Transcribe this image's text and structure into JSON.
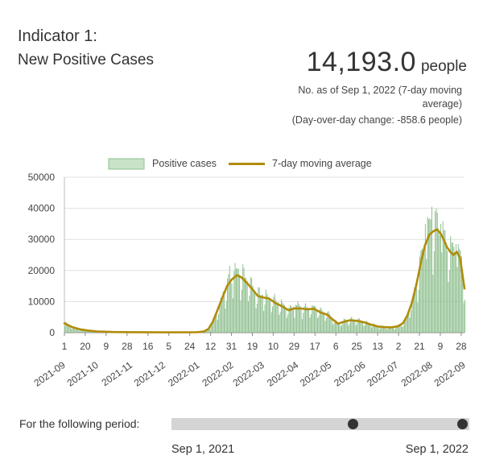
{
  "header": {
    "indicator": "Indicator 1:",
    "title": "New Positive Cases",
    "value": "14,193.0",
    "unit": "people",
    "note": "No. as of Sep 1, 2022  (7-day moving average)",
    "change": "(Day-over-day change: -858.6 people)"
  },
  "period": {
    "label": "For the following period:",
    "start": "Sep 1, 2021",
    "end": "Sep 1, 2022"
  },
  "colors": {
    "bar": "#8fbf8f",
    "bar_fill": "#c7e3c7",
    "line": "#b08c0a",
    "grid": "#e0e0e0"
  },
  "chart_data": {
    "type": "bar",
    "legend": {
      "placement": "top-center",
      "bar_label": "Positive cases",
      "line_label": "7-day moving average"
    },
    "ylim": [
      0,
      50000
    ],
    "yticks": [
      "0",
      "10000",
      "20000",
      "30000",
      "40000",
      "50000"
    ],
    "x_start": "2021-09-01",
    "x_end": "2022-08-31",
    "grid": "horizontal",
    "day_ticks": [
      {
        "label": "1",
        "date": "2021-09-01"
      },
      {
        "label": "20",
        "date": "2021-09-20"
      },
      {
        "label": "9",
        "date": "2021-10-09"
      },
      {
        "label": "28",
        "date": "2021-10-28"
      },
      {
        "label": "16",
        "date": "2021-11-16"
      },
      {
        "label": "5",
        "date": "2021-12-05"
      },
      {
        "label": "24",
        "date": "2021-12-24"
      },
      {
        "label": "12",
        "date": "2022-01-12"
      },
      {
        "label": "31",
        "date": "2022-01-31"
      },
      {
        "label": "19",
        "date": "2022-02-19"
      },
      {
        "label": "10",
        "date": "2022-03-10"
      },
      {
        "label": "29",
        "date": "2022-03-29"
      },
      {
        "label": "17",
        "date": "2022-04-17"
      },
      {
        "label": "6",
        "date": "2022-05-06"
      },
      {
        "label": "25",
        "date": "2022-05-25"
      },
      {
        "label": "13",
        "date": "2022-06-13"
      },
      {
        "label": "2",
        "date": "2022-07-02"
      },
      {
        "label": "21",
        "date": "2022-07-21"
      },
      {
        "label": "9",
        "date": "2022-08-09"
      },
      {
        "label": "28",
        "date": "2022-08-28"
      }
    ],
    "month_ticks": [
      {
        "label": "2021-09",
        "date": "2021-09-01"
      },
      {
        "label": "2021-10",
        "date": "2021-10-01"
      },
      {
        "label": "2021-11",
        "date": "2021-11-01"
      },
      {
        "label": "2021-12",
        "date": "2021-12-01"
      },
      {
        "label": "2022-01",
        "date": "2022-01-01"
      },
      {
        "label": "2022-02",
        "date": "2022-02-01"
      },
      {
        "label": "2022-03",
        "date": "2022-03-01"
      },
      {
        "label": "2022-04",
        "date": "2022-04-01"
      },
      {
        "label": "2022-05",
        "date": "2022-05-01"
      },
      {
        "label": "2022-06",
        "date": "2022-06-01"
      },
      {
        "label": "2022-07",
        "date": "2022-07-01"
      },
      {
        "label": "2022-08",
        "date": "2022-08-01"
      },
      {
        "label": "2022-09",
        "date": "2022-09-01"
      }
    ],
    "moving_average": [
      [
        "2021-09-01",
        3000
      ],
      [
        "2021-09-08",
        1800
      ],
      [
        "2021-09-15",
        1100
      ],
      [
        "2021-09-22",
        700
      ],
      [
        "2021-10-01",
        400
      ],
      [
        "2021-10-15",
        200
      ],
      [
        "2021-11-01",
        150
      ],
      [
        "2021-12-01",
        100
      ],
      [
        "2021-12-31",
        150
      ],
      [
        "2022-01-06",
        400
      ],
      [
        "2022-01-10",
        1200
      ],
      [
        "2022-01-14",
        3500
      ],
      [
        "2022-01-18",
        7000
      ],
      [
        "2022-01-23",
        11500
      ],
      [
        "2022-01-27",
        15000
      ],
      [
        "2022-01-31",
        17000
      ],
      [
        "2022-02-05",
        18500
      ],
      [
        "2022-02-09",
        17800
      ],
      [
        "2022-02-14",
        16000
      ],
      [
        "2022-02-19",
        14000
      ],
      [
        "2022-02-24",
        11800
      ],
      [
        "2022-03-01",
        11300
      ],
      [
        "2022-03-06",
        11000
      ],
      [
        "2022-03-12",
        9500
      ],
      [
        "2022-03-18",
        8500
      ],
      [
        "2022-03-24",
        7200
      ],
      [
        "2022-03-29",
        7800
      ],
      [
        "2022-04-04",
        7800
      ],
      [
        "2022-04-10",
        7500
      ],
      [
        "2022-04-16",
        7700
      ],
      [
        "2022-04-22",
        6500
      ],
      [
        "2022-04-28",
        5800
      ],
      [
        "2022-05-04",
        4000
      ],
      [
        "2022-05-08",
        2900
      ],
      [
        "2022-05-14",
        3600
      ],
      [
        "2022-05-19",
        4000
      ],
      [
        "2022-05-25",
        3800
      ],
      [
        "2022-06-01",
        3300
      ],
      [
        "2022-06-07",
        2600
      ],
      [
        "2022-06-13",
        2000
      ],
      [
        "2022-06-19",
        1800
      ],
      [
        "2022-06-25",
        1700
      ],
      [
        "2022-07-01",
        2000
      ],
      [
        "2022-07-06",
        3000
      ],
      [
        "2022-07-10",
        5500
      ],
      [
        "2022-07-14",
        9500
      ],
      [
        "2022-07-18",
        15000
      ],
      [
        "2022-07-22",
        22000
      ],
      [
        "2022-07-26",
        28000
      ],
      [
        "2022-07-30",
        31500
      ],
      [
        "2022-08-03",
        32700
      ],
      [
        "2022-08-06",
        33200
      ],
      [
        "2022-08-09",
        32000
      ],
      [
        "2022-08-12",
        30000
      ],
      [
        "2022-08-15",
        27500
      ],
      [
        "2022-08-18",
        26000
      ],
      [
        "2022-08-21",
        25000
      ],
      [
        "2022-08-24",
        26000
      ],
      [
        "2022-08-27",
        24000
      ],
      [
        "2022-08-29",
        19000
      ],
      [
        "2022-08-31",
        14193
      ]
    ],
    "daily_peaks": [
      [
        "2022-01-29",
        21500
      ],
      [
        "2022-02-02",
        19800
      ],
      [
        "2022-02-18",
        17500
      ],
      [
        "2022-03-30",
        9000
      ],
      [
        "2022-04-14",
        8700
      ],
      [
        "2022-07-26",
        35000
      ],
      [
        "2022-07-29",
        36500
      ],
      [
        "2022-08-01",
        40500
      ],
      [
        "2022-08-04",
        39000
      ],
      [
        "2022-08-06",
        38500
      ],
      [
        "2022-08-09",
        35000
      ],
      [
        "2022-08-12",
        33000
      ],
      [
        "2022-08-19",
        29000
      ],
      [
        "2022-08-23",
        28500
      ],
      [
        "2022-08-26",
        27000
      ]
    ]
  }
}
